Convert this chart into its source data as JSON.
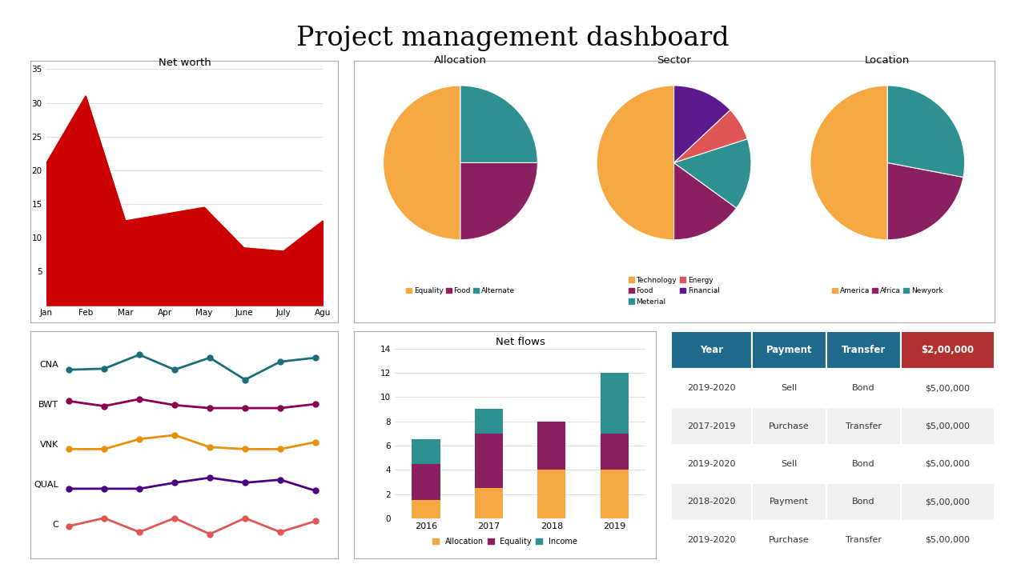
{
  "title": "Project management dashboard",
  "net_worth": {
    "title": "Net worth",
    "months": [
      "Jan",
      "Feb",
      "Mar",
      "Apr",
      "May",
      "June",
      "July",
      "Agu"
    ],
    "values": [
      21,
      31,
      12.5,
      13.5,
      14.5,
      8.5,
      8,
      12.5
    ],
    "color": "#CC0000",
    "ylim": [
      0,
      35
    ],
    "yticks": [
      0,
      5,
      10,
      15,
      20,
      25,
      30,
      35
    ]
  },
  "allocation_pie": {
    "title": "Allocation",
    "labels": [
      "Equality",
      "Food",
      "Alternate"
    ],
    "sizes": [
      50,
      25,
      25
    ],
    "colors": [
      "#F5A742",
      "#8B2060",
      "#2E9090"
    ],
    "startangle": 90
  },
  "sector_pie": {
    "title": "Sector",
    "labels": [
      "Technology",
      "Food",
      "Meterial",
      "Energy",
      "Financial"
    ],
    "sizes": [
      50,
      15,
      15,
      7,
      13
    ],
    "colors": [
      "#F5A742",
      "#8B2060",
      "#2E9090",
      "#E05555",
      "#5B1A8B"
    ],
    "startangle": 90
  },
  "location_pie": {
    "title": "Location",
    "labels": [
      "America",
      "Africa",
      "Newyork"
    ],
    "sizes": [
      50,
      22,
      28
    ],
    "colors": [
      "#F5A742",
      "#8B2060",
      "#2E9090"
    ],
    "startangle": 90
  },
  "line_chart": {
    "series_names": [
      "CNA",
      "BWT",
      "VNK",
      "QUAL",
      "C"
    ],
    "series_values": [
      [
        3.0,
        3.1,
        4.5,
        3.0,
        4.2,
        2.0,
        3.8,
        4.2
      ],
      [
        4.0,
        3.5,
        4.2,
        3.6,
        3.3,
        3.3,
        3.3,
        3.7
      ],
      [
        2.8,
        2.8,
        3.8,
        4.2,
        3.0,
        2.8,
        2.8,
        3.5
      ],
      [
        2.2,
        2.2,
        2.2,
        2.8,
        3.3,
        2.8,
        3.1,
        2.0
      ],
      [
        1.2,
        2.0,
        0.6,
        2.0,
        0.4,
        2.0,
        0.6,
        1.7
      ]
    ],
    "series_colors": [
      "#1A6E7A",
      "#8B0050",
      "#E8900A",
      "#4B0082",
      "#E05555"
    ]
  },
  "net_flows": {
    "title": "Net flows",
    "years": [
      "2016",
      "2017",
      "2018",
      "2019"
    ],
    "allocation": [
      1.5,
      2.5,
      4.0,
      4.0
    ],
    "equality": [
      3.0,
      4.5,
      4.0,
      3.0
    ],
    "income": [
      2.0,
      2.0,
      0.0,
      5.0
    ],
    "colors": {
      "allocation": "#F5A742",
      "equality": "#8B2060",
      "income": "#2E9090"
    },
    "ylim": [
      0,
      14
    ],
    "yticks": [
      0,
      2,
      4,
      6,
      8,
      10,
      12,
      14
    ]
  },
  "table": {
    "header": [
      "Year",
      "Payment",
      "Transfer",
      "$2,00,000"
    ],
    "header_colors": [
      "#1F6A8A",
      "#1F6A8A",
      "#1F6A8A",
      "#B03030"
    ],
    "rows": [
      [
        "2019-2020",
        "Sell",
        "Bond",
        "$5,00,000"
      ],
      [
        "2017-2019",
        "Purchase",
        "Transfer",
        "$5,00,000"
      ],
      [
        "2019-2020",
        "Sell",
        "Bond",
        "$5,00,000"
      ],
      [
        "2018-2020",
        "Payment",
        "Bond",
        "$5,00,000"
      ],
      [
        "2019-2020",
        "Purchase",
        "Transfer",
        "$5,00,000"
      ]
    ]
  }
}
